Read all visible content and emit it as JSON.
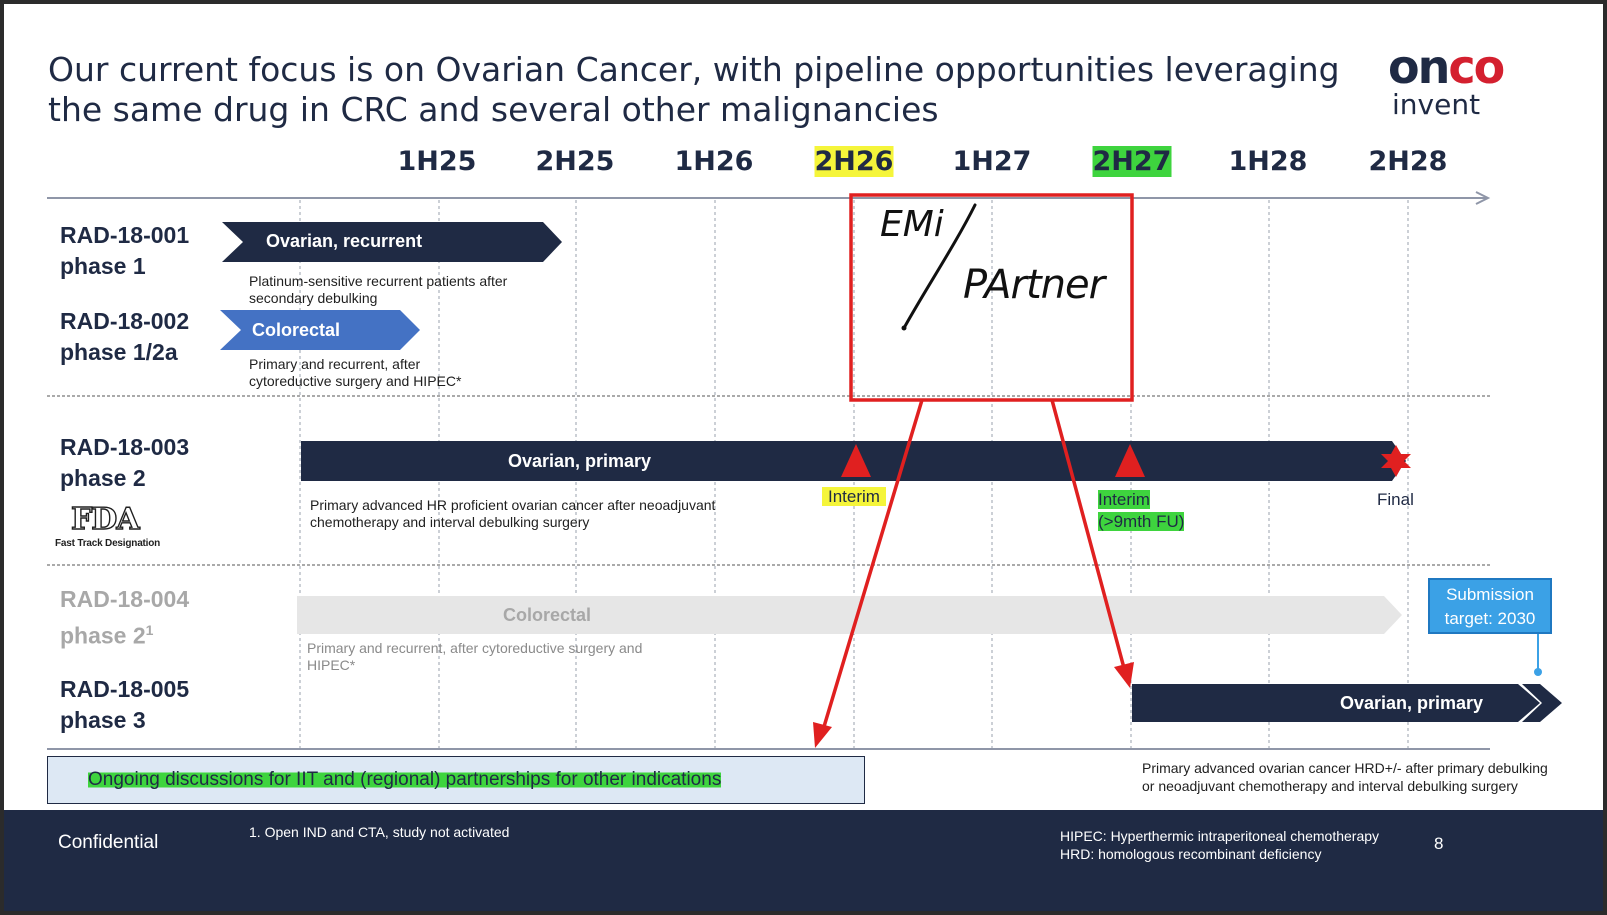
{
  "title": "Our current focus is on Ovarian Cancer, with pipeline opportunities leveraging the same drug in CRC and several other malignancies",
  "logo": {
    "word": "onco",
    "word_main": "on",
    "word_accent": "co",
    "sub": "invent"
  },
  "colors": {
    "navy": "#1f2a44",
    "blue": "#4472c4",
    "grey": "#e6e6e6",
    "red": "#e02020",
    "accent_red": "#d4202f",
    "highlight_yellow": "#f5f53a",
    "highlight_green": "#3ed43e",
    "submission_blue": "#3ba1e6"
  },
  "timeline": {
    "periods": [
      {
        "label": "1H25",
        "highlight": ""
      },
      {
        "label": "2H25",
        "highlight": ""
      },
      {
        "label": "1H26",
        "highlight": ""
      },
      {
        "label": "2H26",
        "highlight": "yellow"
      },
      {
        "label": "1H27",
        "highlight": ""
      },
      {
        "label": "2H27",
        "highlight": "green"
      },
      {
        "label": "1H28",
        "highlight": ""
      },
      {
        "label": "2H28",
        "highlight": ""
      }
    ]
  },
  "studies": [
    {
      "id": "RAD-18-001",
      "phase": "phase 1",
      "bar_label": "Ovarian, recurrent",
      "description": "Platinum-sensitive recurrent patients after secondary debulking"
    },
    {
      "id": "RAD-18-002",
      "phase": "phase 1/2a",
      "bar_label": "Colorectal",
      "description": "Primary and recurrent, after cytoreductive surgery and HIPEC*"
    },
    {
      "id": "RAD-18-003",
      "phase": "phase 2",
      "bar_label": "Ovarian, primary",
      "description": "Primary advanced HR proficient ovarian cancer after neoadjuvant chemotherapy and interval debulking surgery"
    },
    {
      "id": "RAD-18-004",
      "phase": "phase 2",
      "phase_sup": "1",
      "bar_label": "Colorectal",
      "description": "Primary and recurrent, after cytoreductive surgery and HIPEC*"
    },
    {
      "id": "RAD-18-005",
      "phase": "phase 3",
      "bar_label": "Ovarian, primary",
      "description": "Primary advanced ovarian cancer HRD+/- after primary debulking or neoadjuvant chemotherapy and interval debulking surgery"
    }
  ],
  "milestones": {
    "interim1": "Interim",
    "interim2_line1": "Interim",
    "interim2_line2": "(>9mth FU)",
    "final": "Final"
  },
  "fda": {
    "mark": "FDA",
    "designation": "Fast Track Designation"
  },
  "submission": {
    "line1": "Submission",
    "line2": "target: 2030"
  },
  "discussion": "Ongoing discussions for IIT and (regional) partnerships for other indications",
  "annotation": {
    "line1": "EMi",
    "line2": "PArtner"
  },
  "footer": {
    "confidential": "Confidential",
    "note": "1. Open IND and CTA, study not activated",
    "hipec": "HIPEC: Hyperthermic intraperitoneal chemotherapy",
    "hrd": "HRD: homologous recombinant deficiency",
    "page": "8"
  }
}
